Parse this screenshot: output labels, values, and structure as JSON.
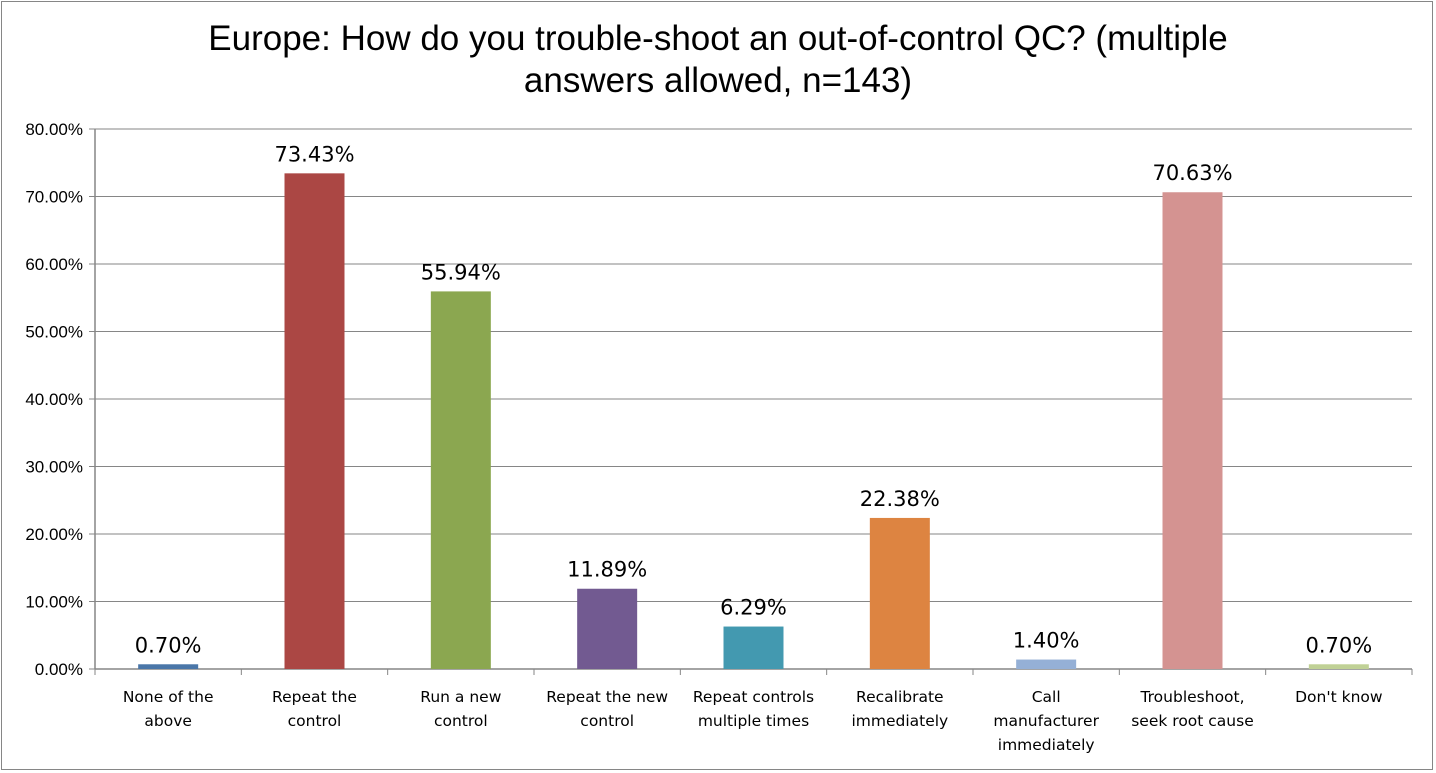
{
  "chart_data": {
    "type": "bar",
    "title": "Europe: How do you trouble-shoot an out-of-control QC? (multiple answers allowed, n=143)",
    "title_lines": [
      "Europe: How do you trouble-shoot an out-of-control QC? (multiple",
      "answers allowed, n=143)"
    ],
    "xlabel": "",
    "ylabel": "",
    "ylim": [
      0,
      80
    ],
    "yticks": [
      0,
      10,
      20,
      30,
      40,
      50,
      60,
      70,
      80
    ],
    "ytick_labels": [
      "0.00%",
      "10.00%",
      "20.00%",
      "30.00%",
      "40.00%",
      "50.00%",
      "60.00%",
      "70.00%",
      "80.00%"
    ],
    "grid": true,
    "legend": "none",
    "categories": [
      [
        "None of the",
        "above"
      ],
      [
        "Repeat the",
        "control"
      ],
      [
        "Run a new",
        "control"
      ],
      [
        "Repeat the new",
        "control"
      ],
      [
        "Repeat controls",
        "multiple times"
      ],
      [
        "Recalibrate",
        "immediately"
      ],
      [
        "Call",
        "manufacturer",
        "immediately"
      ],
      [
        "Troubleshoot,",
        "seek root cause"
      ],
      [
        "Don't know"
      ]
    ],
    "values": [
      0.7,
      73.43,
      55.94,
      11.89,
      6.29,
      22.38,
      1.4,
      70.63,
      0.7
    ],
    "data_labels": [
      "0.70%",
      "73.43%",
      "55.94%",
      "11.89%",
      "6.29%",
      "22.38%",
      "1.40%",
      "70.63%",
      "0.70%"
    ],
    "colors": [
      "#4A76A8",
      "#AB4744",
      "#8BA750",
      "#725A91",
      "#4399B0",
      "#DD8441",
      "#95B0D6",
      "#D49391",
      "#C0D196"
    ]
  }
}
